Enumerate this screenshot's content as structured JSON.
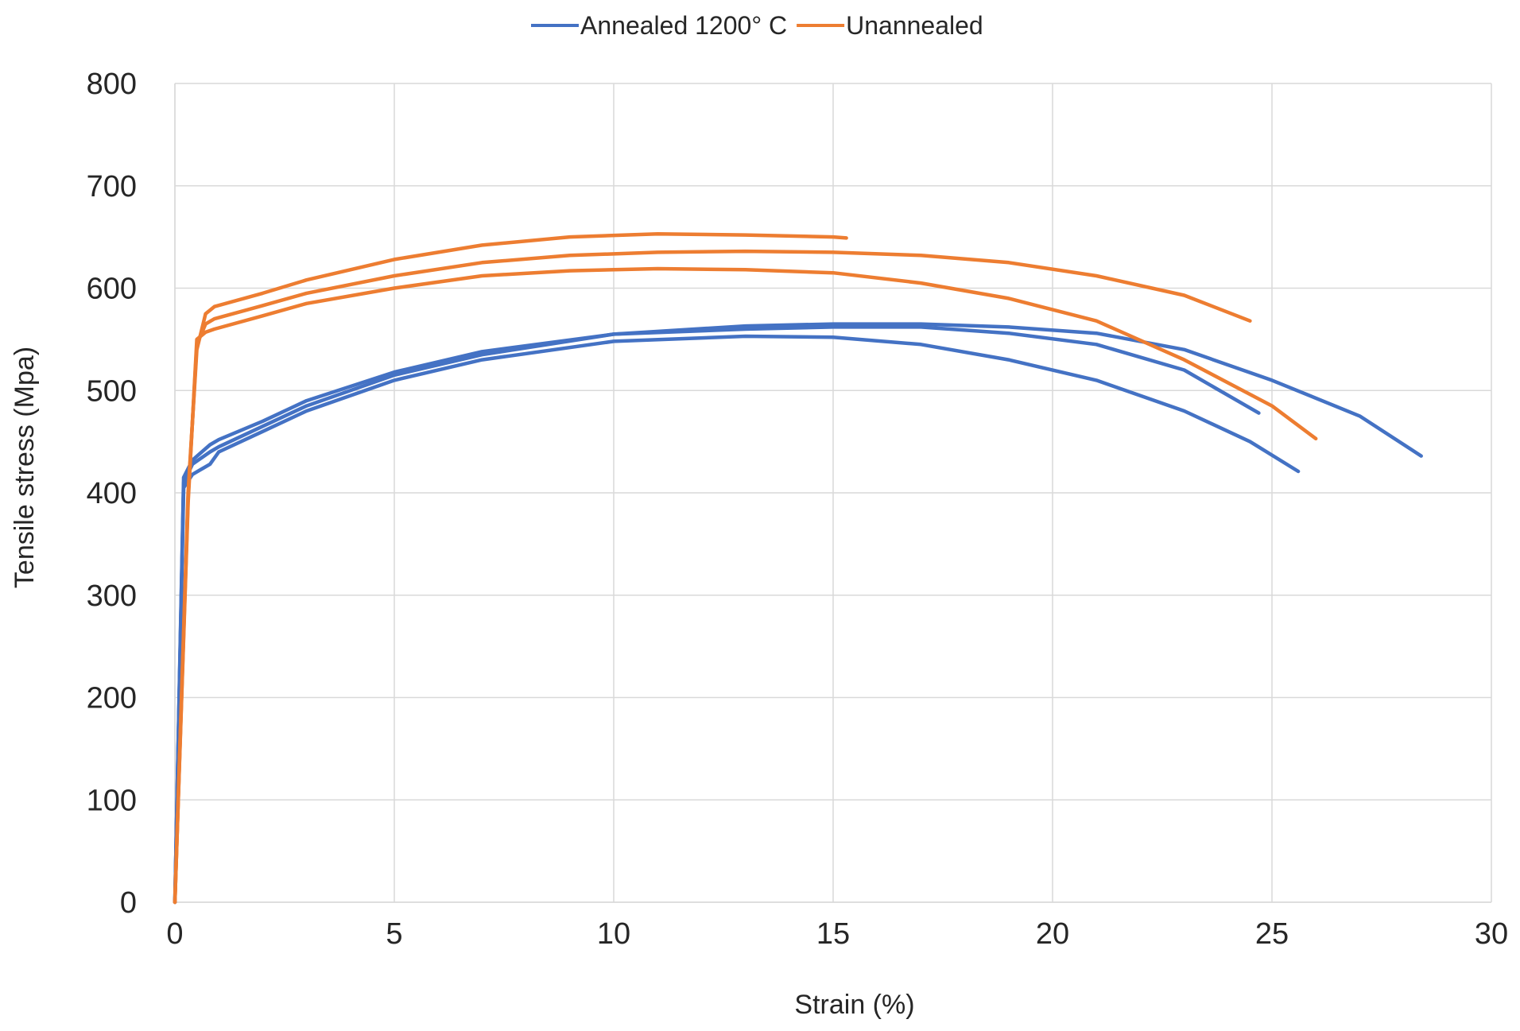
{
  "chart_data": {
    "type": "line",
    "title": "",
    "xlabel": "Strain (%)",
    "ylabel": "Tensile stress (Mpa)",
    "xlim": [
      0,
      30
    ],
    "ylim": [
      0,
      800
    ],
    "xticks": [
      0,
      5,
      10,
      15,
      20,
      25,
      30
    ],
    "yticks": [
      0,
      100,
      200,
      300,
      400,
      500,
      600,
      700,
      800
    ],
    "grid": true,
    "legend_position": "top-center",
    "legend": [
      {
        "name": "Annealed 1200° C",
        "color": "#4472c4"
      },
      {
        "name": "Unannealed",
        "color": "#ed7d31"
      }
    ],
    "series": [
      {
        "name": "Annealed 1200° C",
        "color": "#4472c4",
        "points": [
          [
            0,
            0
          ],
          [
            0.2,
            410
          ],
          [
            0.4,
            428
          ],
          [
            0.8,
            440
          ],
          [
            1,
            445
          ],
          [
            2,
            465
          ],
          [
            3,
            485
          ],
          [
            5,
            515
          ],
          [
            7,
            535
          ],
          [
            10,
            555
          ],
          [
            13,
            563
          ],
          [
            15,
            565
          ],
          [
            17,
            565
          ],
          [
            19,
            562
          ],
          [
            21,
            556
          ],
          [
            23,
            540
          ],
          [
            25,
            510
          ],
          [
            27,
            475
          ],
          [
            28.4,
            436
          ]
        ]
      },
      {
        "name": "Annealed 1200° C",
        "color": "#4472c4",
        "points": [
          [
            0,
            0
          ],
          [
            0.2,
            405
          ],
          [
            0.4,
            418
          ],
          [
            0.8,
            428
          ],
          [
            1,
            440
          ],
          [
            2,
            460
          ],
          [
            3,
            480
          ],
          [
            5,
            510
          ],
          [
            7,
            530
          ],
          [
            10,
            548
          ],
          [
            13,
            553
          ],
          [
            15,
            552
          ],
          [
            17,
            545
          ],
          [
            19,
            530
          ],
          [
            21,
            510
          ],
          [
            23,
            480
          ],
          [
            24.5,
            450
          ],
          [
            25.6,
            421
          ]
        ]
      },
      {
        "name": "Annealed 1200° C",
        "color": "#4472c4",
        "points": [
          [
            0,
            0
          ],
          [
            0.2,
            415
          ],
          [
            0.4,
            432
          ],
          [
            0.8,
            447
          ],
          [
            1,
            452
          ],
          [
            2,
            470
          ],
          [
            3,
            490
          ],
          [
            5,
            518
          ],
          [
            7,
            538
          ],
          [
            10,
            555
          ],
          [
            13,
            560
          ],
          [
            15,
            562
          ],
          [
            17,
            562
          ],
          [
            19,
            556
          ],
          [
            21,
            545
          ],
          [
            23,
            520
          ],
          [
            24.7,
            478
          ]
        ]
      },
      {
        "name": "Unannealed",
        "color": "#ed7d31",
        "points": [
          [
            0,
            0
          ],
          [
            0.3,
            400
          ],
          [
            0.5,
            540
          ],
          [
            0.7,
            575
          ],
          [
            0.9,
            582
          ],
          [
            2,
            595
          ],
          [
            3,
            608
          ],
          [
            5,
            628
          ],
          [
            7,
            642
          ],
          [
            9,
            650
          ],
          [
            11,
            653
          ],
          [
            13,
            652
          ],
          [
            15,
            650
          ],
          [
            15.3,
            649
          ]
        ]
      },
      {
        "name": "Unannealed",
        "color": "#ed7d31",
        "points": [
          [
            0,
            0
          ],
          [
            0.3,
            395
          ],
          [
            0.5,
            545
          ],
          [
            0.7,
            565
          ],
          [
            0.9,
            570
          ],
          [
            2,
            583
          ],
          [
            3,
            595
          ],
          [
            5,
            612
          ],
          [
            7,
            625
          ],
          [
            9,
            632
          ],
          [
            11,
            635
          ],
          [
            13,
            636
          ],
          [
            15,
            635
          ],
          [
            17,
            632
          ],
          [
            19,
            625
          ],
          [
            21,
            612
          ],
          [
            23,
            593
          ],
          [
            24.5,
            568
          ]
        ]
      },
      {
        "name": "Unannealed",
        "color": "#ed7d31",
        "points": [
          [
            0,
            0
          ],
          [
            0.3,
            390
          ],
          [
            0.5,
            550
          ],
          [
            0.7,
            557
          ],
          [
            0.9,
            560
          ],
          [
            2,
            573
          ],
          [
            3,
            585
          ],
          [
            5,
            600
          ],
          [
            7,
            612
          ],
          [
            9,
            617
          ],
          [
            11,
            619
          ],
          [
            13,
            618
          ],
          [
            15,
            615
          ],
          [
            17,
            605
          ],
          [
            19,
            590
          ],
          [
            21,
            568
          ],
          [
            23,
            530
          ],
          [
            25,
            485
          ],
          [
            26,
            453
          ]
        ]
      }
    ]
  }
}
